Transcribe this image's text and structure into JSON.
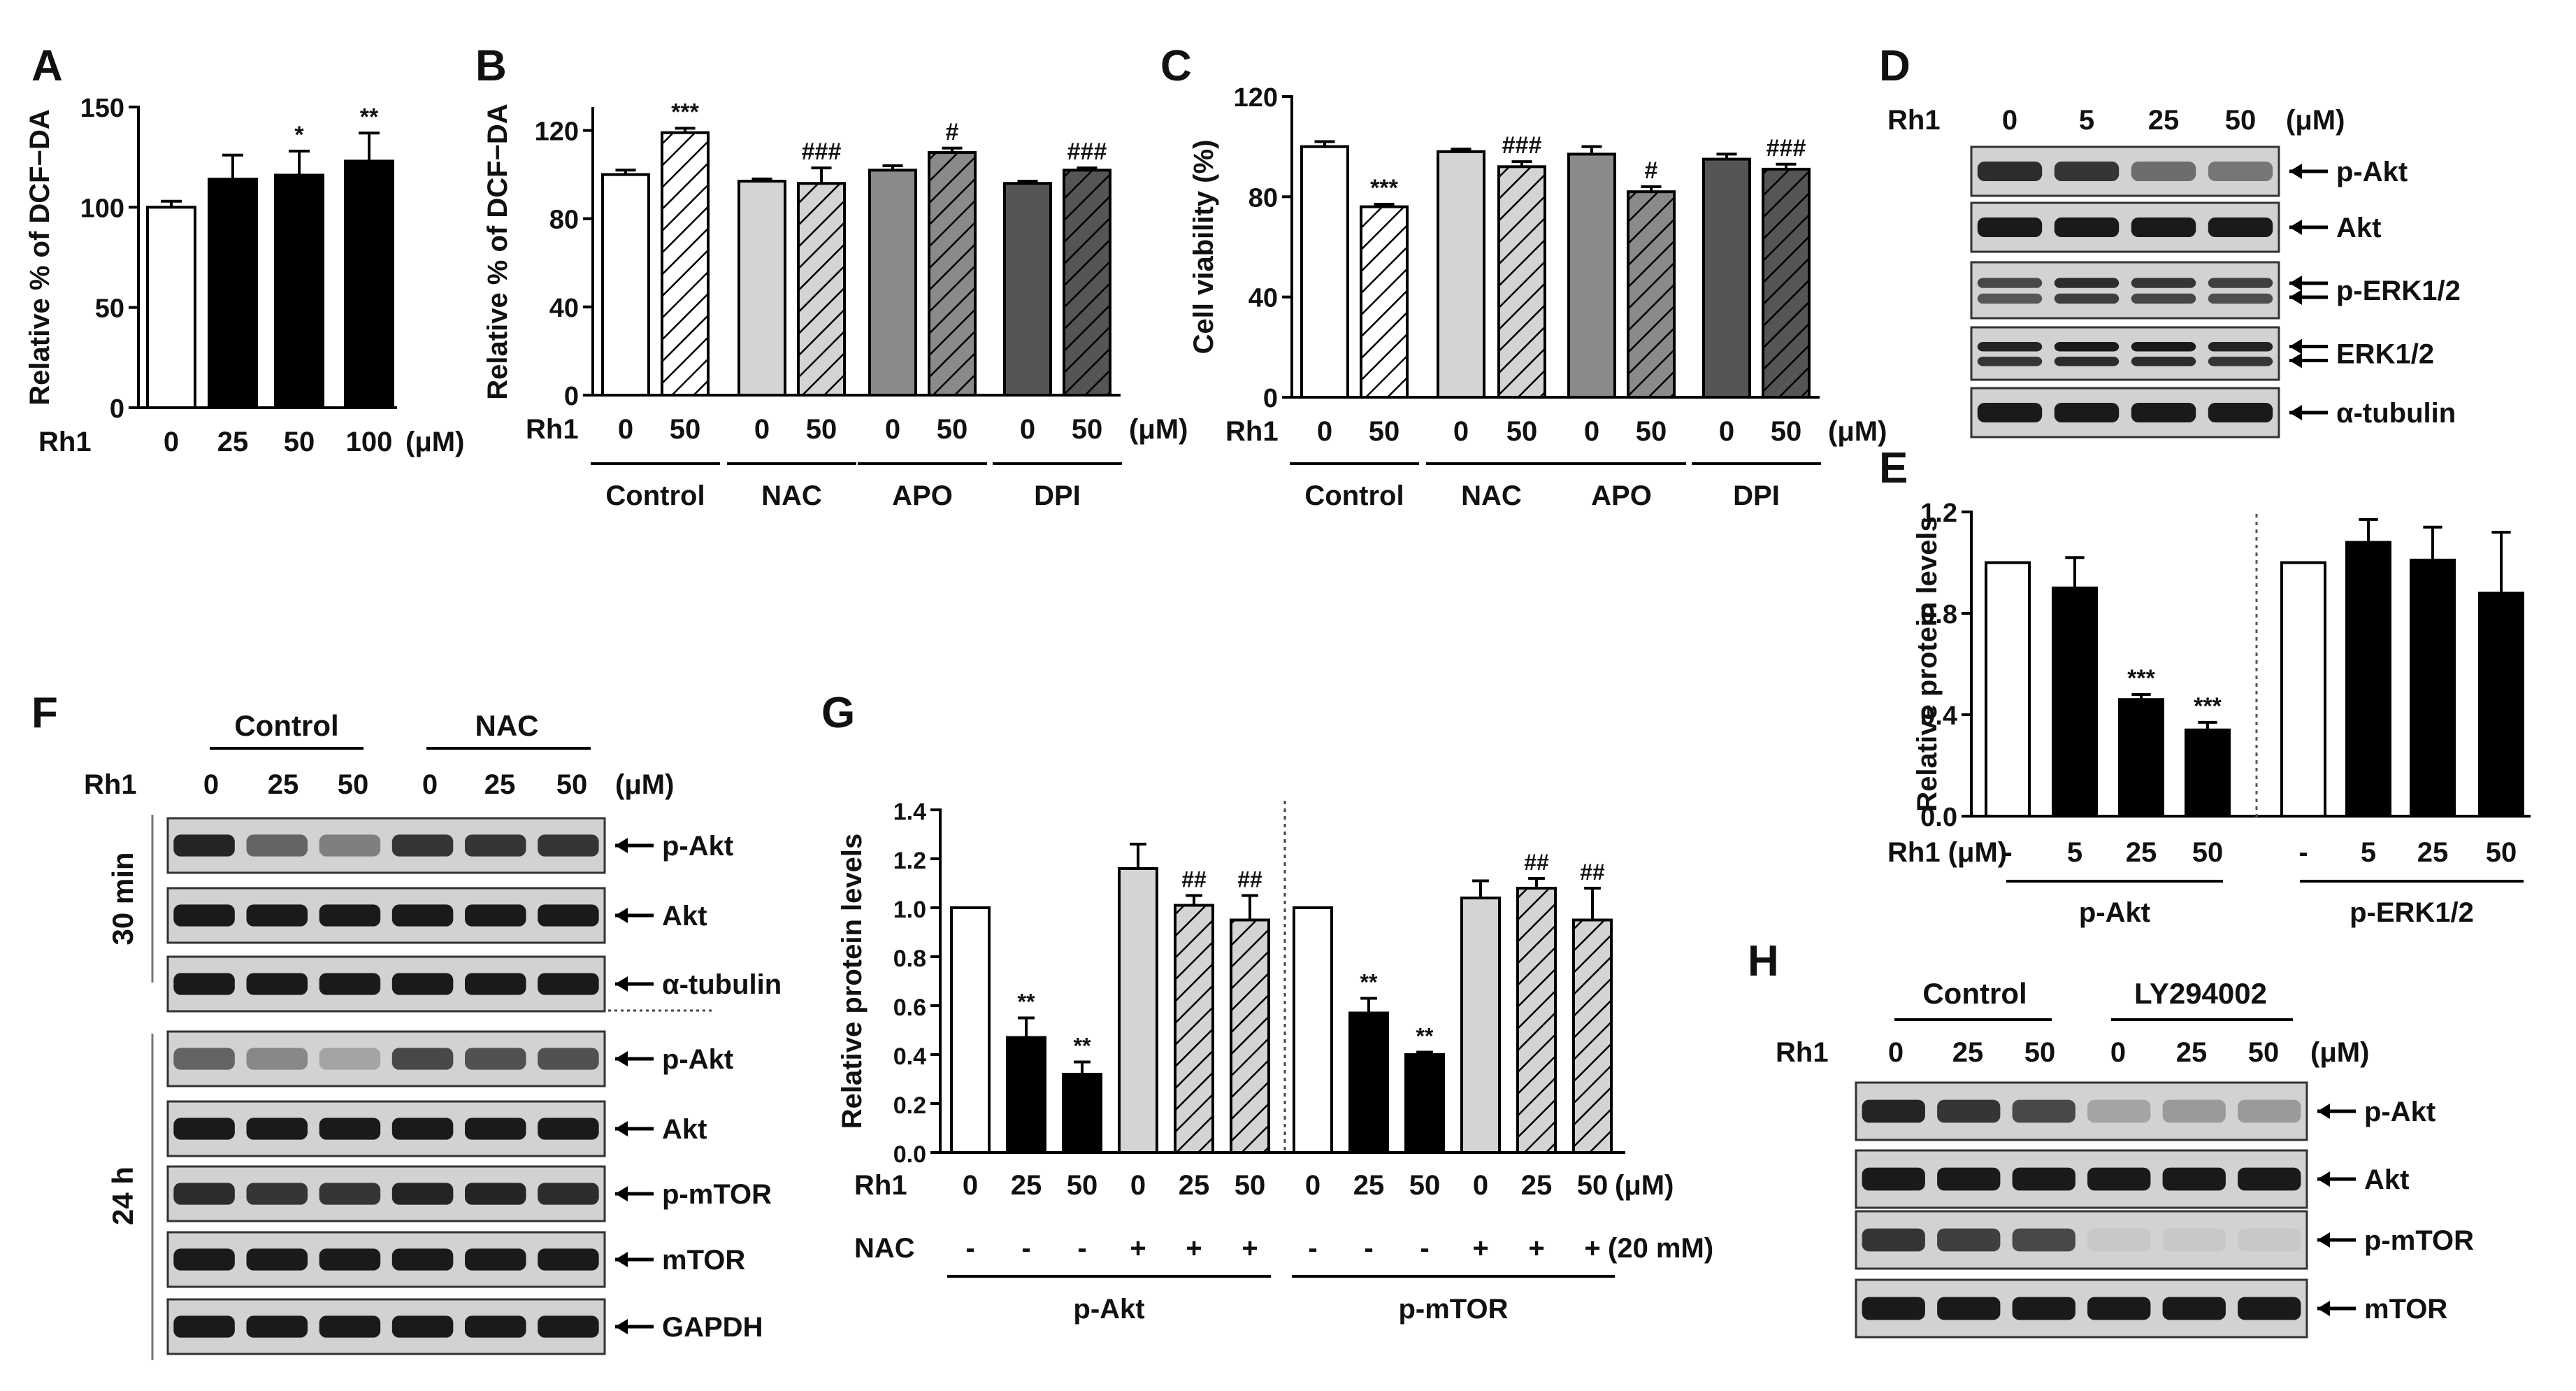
{
  "colors": {
    "white": "#ffffff",
    "black": "#000000",
    "light_gray": "#d4d4d4",
    "mid_gray": "#8a8a8a",
    "dark_gray": "#555555"
  },
  "chart_data": [
    {
      "panel": "A",
      "type": "bar",
      "ylabel": "Relative % of DCF−DA",
      "ylim": [
        0,
        150
      ],
      "yticks": [
        "0",
        "50",
        "100",
        "150"
      ],
      "row_label": "Rh1",
      "unit": "(μM)",
      "categories": [
        "0",
        "25",
        "50",
        "100"
      ],
      "values": [
        100,
        114,
        116,
        123
      ],
      "errors": [
        3,
        12,
        12,
        14
      ],
      "fills": [
        "white",
        "black",
        "black",
        "black"
      ],
      "stars": [
        "",
        "",
        "*",
        "**"
      ]
    },
    {
      "panel": "B",
      "type": "bar",
      "ylabel": "Relative % of DCF−DA",
      "ylim": [
        0,
        130
      ],
      "yticks": [
        "0",
        "40",
        "80",
        "120"
      ],
      "ytick_values": [
        0,
        40,
        80,
        120
      ],
      "row_label": "Rh1",
      "unit": "(μM)",
      "categories": [
        "0",
        "50",
        "0",
        "50",
        "0",
        "50",
        "0",
        "50"
      ],
      "values": [
        100,
        119,
        97,
        96,
        102,
        110,
        96,
        102
      ],
      "errors": [
        2,
        2,
        1,
        7,
        2,
        2,
        1,
        1
      ],
      "fills": [
        "white",
        "hatch-white",
        "light_gray",
        "hatch-light",
        "mid_gray",
        "hatch-mid",
        "dark_gray",
        "hatch-dark"
      ],
      "stars": [
        "",
        "***",
        "",
        "###",
        "",
        "#",
        "",
        "###"
      ],
      "groups": [
        "Control",
        "NAC",
        "APO",
        "DPI"
      ]
    },
    {
      "panel": "C",
      "type": "bar",
      "ylabel": "Cell viability (%)",
      "ylim": [
        0,
        120
      ],
      "yticks": [
        "0",
        "40",
        "80",
        "120"
      ],
      "ytick_values": [
        0,
        40,
        80,
        120
      ],
      "row_label": "Rh1",
      "unit": "(μM)",
      "categories": [
        "0",
        "50",
        "0",
        "50",
        "0",
        "50",
        "0",
        "50"
      ],
      "values": [
        100,
        76,
        98,
        92,
        97,
        82,
        95,
        91
      ],
      "errors": [
        2,
        1,
        1,
        2,
        3,
        2,
        2,
        2
      ],
      "fills": [
        "white",
        "hatch-white",
        "light_gray",
        "hatch-light",
        "mid_gray",
        "hatch-mid",
        "dark_gray",
        "hatch-dark"
      ],
      "stars": [
        "",
        "***",
        "",
        "###",
        "",
        "#",
        "",
        "###"
      ],
      "groups": [
        "Control",
        "NAC",
        "APO",
        "DPI"
      ]
    },
    {
      "panel": "E",
      "type": "bar",
      "ylabel": "Relative protein levels",
      "ylim": [
        0,
        1.2
      ],
      "yticks": [
        "0.0",
        "0.4",
        "0.8",
        "1.2"
      ],
      "ytick_values": [
        0,
        0.4,
        0.8,
        1.2
      ],
      "row_label": "Rh1 (μM)",
      "categories": [
        "-",
        "5",
        "25",
        "50",
        "-",
        "5",
        "25",
        "50"
      ],
      "values": [
        1.0,
        0.9,
        0.46,
        0.34,
        1.0,
        1.08,
        1.01,
        0.88
      ],
      "errors": [
        0,
        0.12,
        0.02,
        0.03,
        0,
        0.09,
        0.13,
        0.24
      ],
      "fills": [
        "white",
        "black",
        "black",
        "black",
        "white",
        "black",
        "black",
        "black"
      ],
      "stars": [
        "",
        "",
        "***",
        "***",
        "",
        "",
        "",
        ""
      ],
      "groups": [
        "p-Akt",
        "p-ERK1/2"
      ]
    },
    {
      "panel": "G",
      "type": "bar",
      "ylabel": "Relative protein levels",
      "ylim": [
        0,
        1.4
      ],
      "yticks": [
        "0.0",
        "0.2",
        "0.4",
        "0.6",
        "0.8",
        "1.0",
        "1.2",
        "1.4"
      ],
      "ytick_values": [
        0,
        0.2,
        0.4,
        0.6,
        0.8,
        1.0,
        1.2,
        1.4
      ],
      "row_label": "Rh1",
      "row2_label": "NAC",
      "unit": "(μM)",
      "unit2": "(20 mM)",
      "categories": [
        "0",
        "25",
        "50",
        "0",
        "25",
        "50",
        "0",
        "25",
        "50",
        "0",
        "25",
        "50"
      ],
      "nac": [
        "-",
        "-",
        "-",
        "+",
        "+",
        "+",
        "-",
        "-",
        "-",
        "+",
        "+",
        "+"
      ],
      "values": [
        1.0,
        0.47,
        0.32,
        1.16,
        1.01,
        0.95,
        1.0,
        0.57,
        0.4,
        1.04,
        1.08,
        0.95
      ],
      "errors": [
        0,
        0.08,
        0.05,
        0.1,
        0.04,
        0.1,
        0,
        0.06,
        0.01,
        0.07,
        0.04,
        0.13
      ],
      "fills": [
        "white",
        "black",
        "black",
        "light_gray",
        "hatch-light",
        "hatch-light",
        "white",
        "black",
        "black",
        "light_gray",
        "hatch-light",
        "hatch-light"
      ],
      "stars": [
        "",
        "**",
        "**",
        "",
        "##",
        "##",
        "",
        "**",
        "**",
        "",
        "##",
        "##"
      ],
      "groups": [
        "p-Akt",
        "p-mTOR"
      ]
    }
  ],
  "blots": {
    "D": {
      "row_label": "Rh1",
      "unit": "(μM)",
      "lanes": [
        "0",
        "5",
        "25",
        "50"
      ],
      "rows": [
        {
          "label": "p-Akt"
        },
        {
          "label": "Akt"
        },
        {
          "label": "p-ERK1/2"
        },
        {
          "label": "ERK1/2"
        },
        {
          "label": "α-tubulin"
        }
      ]
    },
    "F": {
      "row_label": "Rh1",
      "unit": "(μM)",
      "groups": [
        "Control",
        "NAC"
      ],
      "lanes": [
        "0",
        "25",
        "50",
        "0",
        "25",
        "50"
      ],
      "time_labels": [
        "30 min",
        "24 h"
      ],
      "rows_top": [
        {
          "label": "p-Akt"
        },
        {
          "label": "Akt"
        },
        {
          "label": "α-tubulin"
        }
      ],
      "rows_bottom": [
        {
          "label": "p-Akt"
        },
        {
          "label": "Akt"
        },
        {
          "label": "p-mTOR"
        },
        {
          "label": "mTOR"
        },
        {
          "label": "GAPDH"
        }
      ]
    },
    "H": {
      "row_label": "Rh1",
      "unit": "(μM)",
      "groups": [
        "Control",
        "LY294002"
      ],
      "lanes": [
        "0",
        "25",
        "50",
        "0",
        "25",
        "50"
      ],
      "rows": [
        {
          "label": "p-Akt"
        },
        {
          "label": "Akt"
        },
        {
          "label": "p-mTOR"
        },
        {
          "label": "mTOR"
        }
      ]
    }
  },
  "panel_letters": {
    "A": "A",
    "B": "B",
    "C": "C",
    "D": "D",
    "E": "E",
    "F": "F",
    "G": "G",
    "H": "H"
  }
}
